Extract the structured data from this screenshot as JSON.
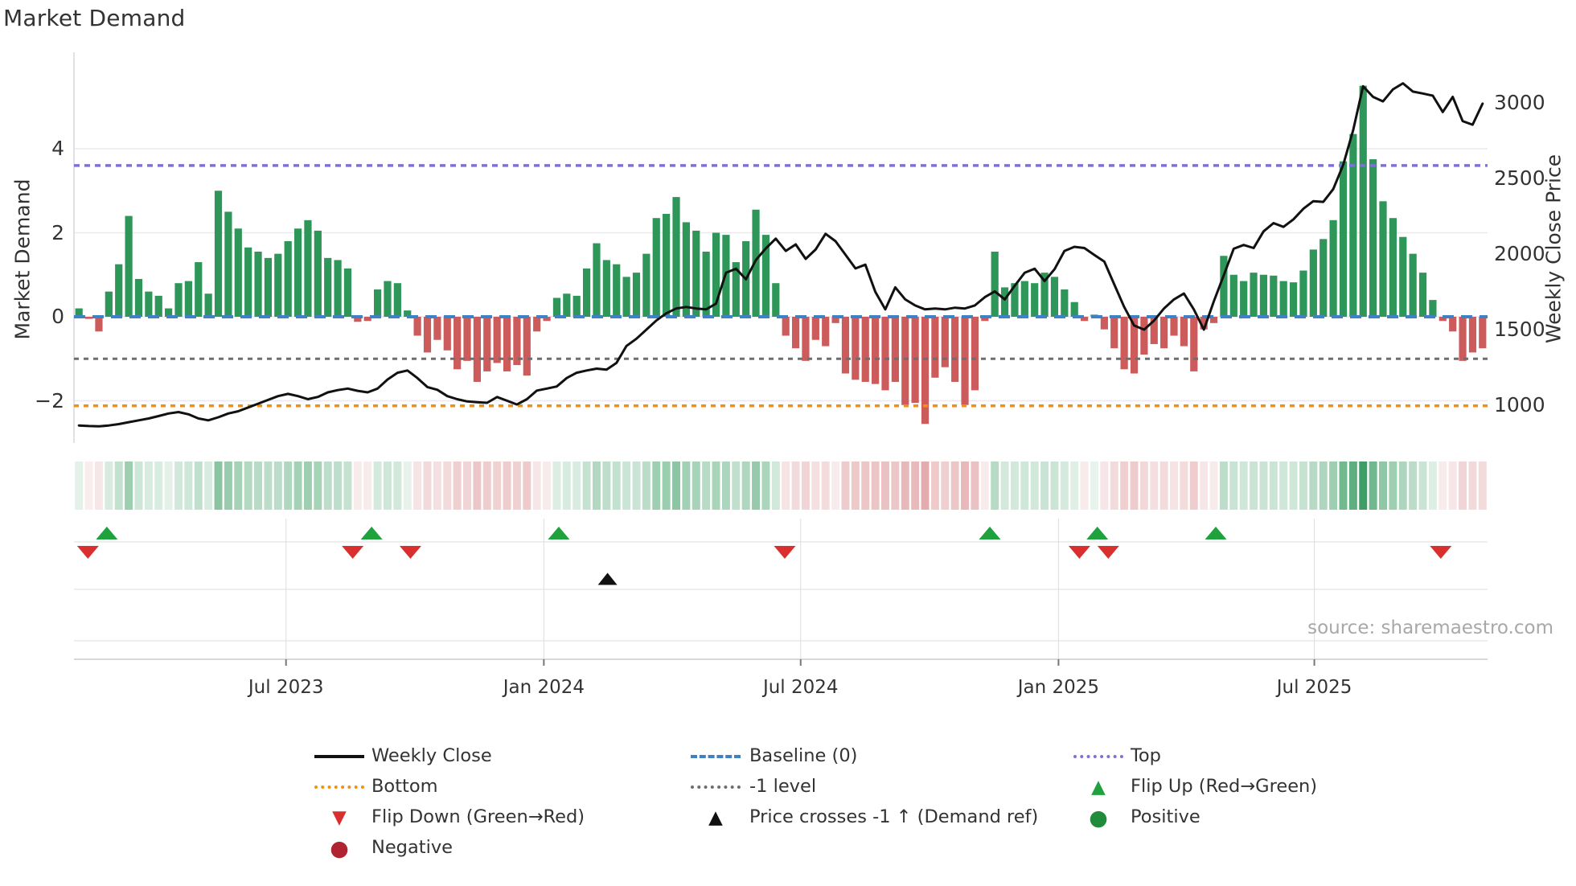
{
  "title": "Market Demand",
  "source": "source: sharemaestro.com",
  "chart_data": {
    "type": "combo (weekly demand bars + price line + signal heatmap + event markers)",
    "title": "Market Demand",
    "left_axis": {
      "label": "Market Demand",
      "ticks": [
        4,
        2,
        0,
        -2
      ],
      "range": [
        -3.05,
        6.3
      ]
    },
    "right_axis": {
      "label": "Weekly Close Price",
      "ticks": [
        1000,
        1500,
        2000,
        2500,
        3000
      ],
      "range": [
        750,
        3340
      ]
    },
    "x_axis": {
      "tick_labels": [
        "Jul 2023",
        "Jan 2024",
        "Jul 2024",
        "Jan 2025",
        "Jul 2025"
      ],
      "tick_week_positions": [
        21.3,
        47.2,
        73.0,
        98.9,
        124.6
      ],
      "n_weeks": 142
    },
    "grid": "horizontal light gridlines at left-axis ticks; lower panel has row/month gridlines",
    "legend_position": "bottom, 3 columns",
    "series": [
      {
        "name": "Market Demand (weekly bars)",
        "type": "bar",
        "values": [
          0.2,
          -0.05,
          -0.35,
          0.6,
          1.25,
          2.4,
          0.9,
          0.6,
          0.5,
          0.2,
          0.8,
          0.85,
          1.3,
          0.55,
          3.0,
          2.5,
          2.1,
          1.65,
          1.55,
          1.4,
          1.5,
          1.8,
          2.1,
          2.3,
          2.05,
          1.4,
          1.35,
          1.15,
          -0.12,
          -0.1,
          0.65,
          0.85,
          0.8,
          0.15,
          -0.45,
          -0.85,
          -0.55,
          -0.8,
          -1.25,
          -1.05,
          -1.55,
          -1.3,
          -1.1,
          -1.3,
          -1.15,
          -1.4,
          -0.35,
          -0.1,
          0.45,
          0.55,
          0.5,
          1.15,
          1.75,
          1.35,
          1.25,
          0.95,
          1.05,
          1.5,
          2.35,
          2.45,
          2.85,
          2.25,
          2.05,
          1.55,
          2.0,
          1.95,
          1.3,
          1.8,
          2.55,
          1.95,
          0.8,
          -0.45,
          -0.75,
          -1.05,
          -0.55,
          -0.7,
          -0.15,
          -1.35,
          -1.5,
          -1.55,
          -1.6,
          -1.75,
          -1.55,
          -2.1,
          -2.05,
          -2.55,
          -1.45,
          -1.2,
          -1.55,
          -2.1,
          -1.75,
          -0.1,
          1.55,
          0.7,
          0.8,
          0.85,
          0.8,
          1.05,
          0.95,
          0.65,
          0.35,
          -0.1,
          0.05,
          -0.3,
          -0.75,
          -1.25,
          -1.35,
          -0.9,
          -0.65,
          -0.75,
          -0.45,
          -0.7,
          -1.3,
          -0.3,
          -0.15,
          1.45,
          1.0,
          0.85,
          1.05,
          1.0,
          0.98,
          0.85,
          0.82,
          1.1,
          1.6,
          1.85,
          2.3,
          3.7,
          4.35,
          5.5,
          3.75,
          2.75,
          2.35,
          1.9,
          1.5,
          1.05,
          0.4,
          -0.1,
          -0.35,
          -1.05,
          -0.85,
          -0.75
        ]
      },
      {
        "name": "Weekly Close",
        "type": "line",
        "values": [
          866,
          862,
          860,
          866,
          875,
          888,
          900,
          912,
          928,
          945,
          955,
          940,
          912,
          900,
          920,
          945,
          960,
          985,
          1010,
          1035,
          1060,
          1075,
          1060,
          1040,
          1055,
          1085,
          1100,
          1110,
          1095,
          1085,
          1110,
          1170,
          1215,
          1230,
          1180,
          1120,
          1102,
          1060,
          1040,
          1025,
          1020,
          1016,
          1054,
          1030,
          1005,
          1040,
          1097,
          1110,
          1124,
          1180,
          1215,
          1230,
          1242,
          1235,
          1280,
          1392,
          1440,
          1500,
          1560,
          1608,
          1640,
          1650,
          1640,
          1634,
          1672,
          1876,
          1903,
          1833,
          1960,
          2037,
          2102,
          2021,
          2064,
          1968,
          2030,
          2134,
          2085,
          1995,
          1905,
          1930,
          1750,
          1634,
          1780,
          1700,
          1660,
          1634,
          1640,
          1634,
          1645,
          1640,
          1660,
          1715,
          1753,
          1700,
          1790,
          1876,
          1903,
          1822,
          1900,
          2021,
          2048,
          2040,
          1994,
          1950,
          1800,
          1650,
          1527,
          1500,
          1560,
          1640,
          1700,
          1739,
          1633,
          1500,
          1686,
          1859,
          2035,
          2060,
          2040,
          2150,
          2205,
          2180,
          2230,
          2300,
          2350,
          2345,
          2430,
          2590,
          2820,
          3110,
          3040,
          3010,
          3090,
          3130,
          3075,
          3062,
          3048,
          2940,
          3040,
          2880,
          2856,
          2995
        ]
      }
    ],
    "reference_lines": [
      {
        "name": "Top",
        "axis": "left",
        "value": 3.6,
        "style": "dotted",
        "color": "#7D71D8"
      },
      {
        "name": "Baseline (0)",
        "axis": "left",
        "value": 0,
        "style": "dashed",
        "color": "#3E82C4"
      },
      {
        "name": "-1 level",
        "axis": "left",
        "value": -1,
        "style": "dotted",
        "color": "#6E6E6E"
      },
      {
        "name": "Bottom",
        "axis": "left",
        "value": -2.12,
        "style": "dotted",
        "color": "#F09110"
      }
    ],
    "heatmap_strip": {
      "description": "one cell per week; green shade for positive demand, red shade for negative, intensity proportional to |demand|"
    },
    "markers": {
      "flip_up": {
        "label": "Flip Up (Red→Green)",
        "color": "#1FA23E",
        "shape": "triangle-up",
        "weeks": [
          2.8,
          29.4,
          48.2,
          91.5,
          102.3,
          114.2
        ]
      },
      "flip_down": {
        "label": "Flip Down (Green→Red)",
        "color": "#D92F2F",
        "shape": "triangle-down",
        "weeks": [
          0.9,
          27.5,
          33.3,
          70.9,
          100.5,
          103.4,
          136.8
        ]
      },
      "price_cross": {
        "label": "Price crosses -1 ↑ (Demand ref)",
        "color": "#111111",
        "shape": "triangle-up",
        "weeks": [
          53.1
        ]
      }
    },
    "legend": [
      {
        "col": 0,
        "row": 0,
        "type": "line",
        "color": "#111111",
        "label": "Weekly Close"
      },
      {
        "col": 1,
        "row": 0,
        "type": "dash",
        "color": "#3E82C4",
        "label": "Baseline (0)"
      },
      {
        "col": 2,
        "row": 0,
        "type": "dot",
        "color": "#7D71D8",
        "label": "Top"
      },
      {
        "col": 0,
        "row": 1,
        "type": "dot",
        "color": "#F09110",
        "label": "Bottom"
      },
      {
        "col": 1,
        "row": 1,
        "type": "dot",
        "color": "#6E6E6E",
        "label": "-1 level"
      },
      {
        "col": 2,
        "row": 1,
        "type": "tri-up",
        "color": "#1FA23E",
        "label": "Flip Up (Red→Green)"
      },
      {
        "col": 0,
        "row": 2,
        "type": "tri-down",
        "color": "#D92F2F",
        "label": "Flip Down (Green→Red)"
      },
      {
        "col": 1,
        "row": 2,
        "type": "tri-up",
        "color": "#111111",
        "label": "Price crosses -1 ↑ (Demand ref)"
      },
      {
        "col": 2,
        "row": 2,
        "type": "circle",
        "color": "#1F8B3B",
        "label": "Positive"
      },
      {
        "col": 0,
        "row": 3,
        "type": "circle",
        "color": "#AF2430",
        "label": "Negative"
      }
    ],
    "colors": {
      "bar_positive": "#2E9658",
      "bar_negative": "#CC5C5C",
      "price_line": "#111111",
      "gridline": "#E9E9F0",
      "panel_grid": "#DDDDDD",
      "axis_spine": "#CCCCCC",
      "heat_green": "46,150,88",
      "heat_red": "201,90,94"
    }
  }
}
